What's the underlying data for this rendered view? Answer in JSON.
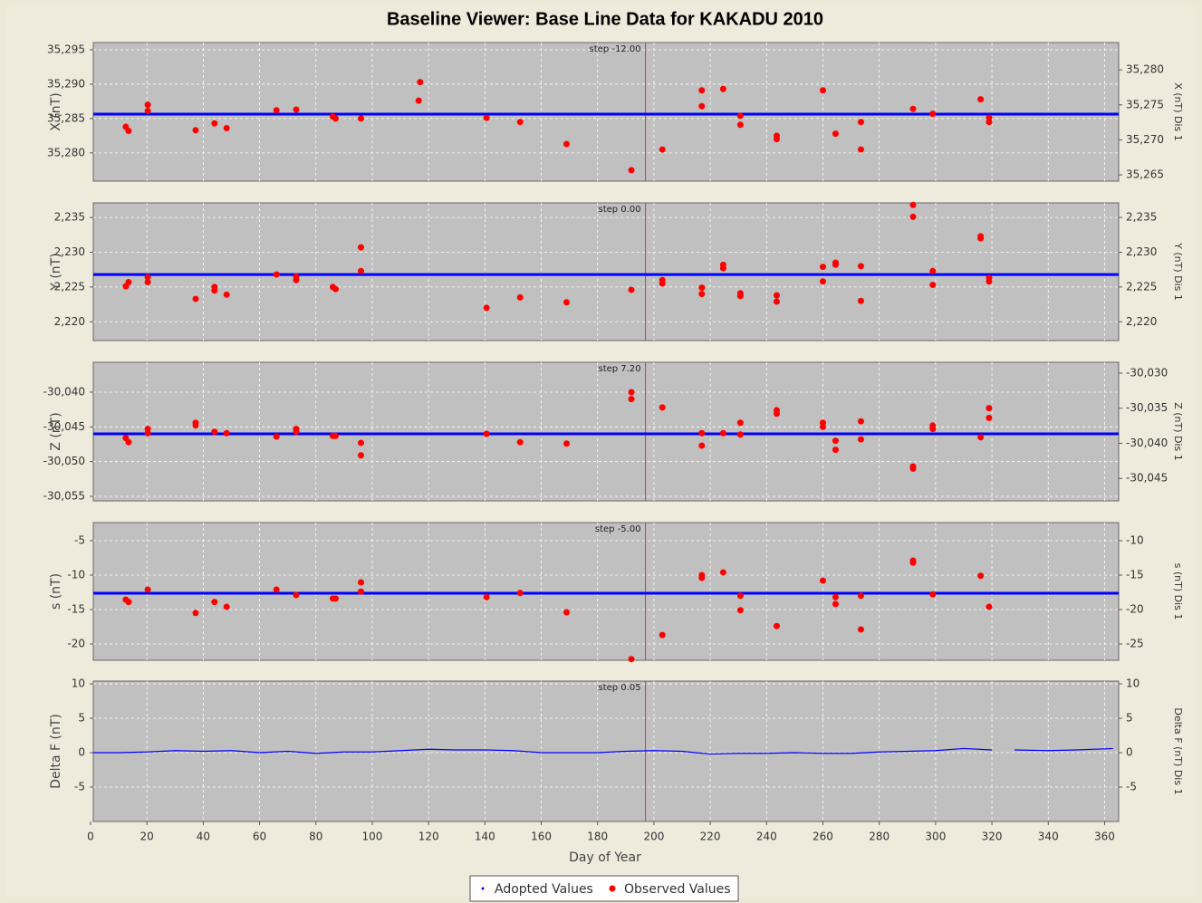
{
  "title": "Baseline Viewer: Base Line Data for KAKADU 2010",
  "xlabel": "Day of Year",
  "xlim": [
    0,
    365
  ],
  "xticks": [
    0,
    20,
    40,
    60,
    80,
    100,
    120,
    140,
    160,
    180,
    200,
    220,
    240,
    260,
    280,
    300,
    320,
    340,
    360
  ],
  "step_day": 197,
  "grid": true,
  "legend": [
    {
      "name": "Adopted Values",
      "color": "#0000ff"
    },
    {
      "name": "Observed Values",
      "color": "#ff0000"
    }
  ],
  "chart_data": [
    {
      "type": "scatter",
      "ylabel": "X (nT)",
      "y2label": "X (nT)  Dis 1",
      "step": "step -12.00",
      "ylim": [
        35275.9,
        35296.05
      ],
      "yticks": [
        {
          "value": 35280,
          "label": "35,280"
        },
        {
          "value": 35285,
          "label": "35,285"
        },
        {
          "value": 35290,
          "label": "35,290"
        },
        {
          "value": 35295,
          "label": "35,295"
        }
      ],
      "y2lim": [
        35264.1,
        35283.9
      ],
      "y2ticks": [
        {
          "value": 35265,
          "label": "35,265"
        },
        {
          "value": 35270,
          "label": "35,270"
        },
        {
          "value": 35275,
          "label": "35,275"
        },
        {
          "value": 35280,
          "label": "35,280"
        }
      ],
      "adopted": 35285.65,
      "observed": {
        "x": [
          12.5,
          13.5,
          20.3,
          20.3,
          37.3,
          44,
          48.3,
          66,
          73,
          86,
          87,
          96,
          117,
          116.5,
          140.6,
          152.5,
          169,
          192,
          203,
          217,
          217,
          224.6,
          230.7,
          230.7,
          243.6,
          243.6,
          260,
          264.5,
          273.5,
          273.5,
          292,
          299,
          316,
          319,
          319
        ],
        "values": [
          35283.8,
          35283.2,
          35287,
          35286.1,
          35283.3,
          35284.3,
          35283.6,
          35286.2,
          35286.3,
          35285.3,
          35285,
          35285,
          35290.3,
          35287.6,
          35285.1,
          35284.5,
          35281.3,
          35277.5,
          35280.5,
          35289.1,
          35286.8,
          35289.3,
          35285.4,
          35284.1,
          35282.5,
          35282,
          35289.1,
          35282.8,
          35284.5,
          35280.5,
          35286.4,
          35285.7,
          35287.8,
          35285.1,
          35284.5
        ]
      }
    },
    {
      "type": "scatter",
      "ylabel": "Y (nT)",
      "y2label": "Y (nT)  Dis 1",
      "step": "step 0.00",
      "ylim": [
        2217.3,
        2237.1
      ],
      "yticks": [
        {
          "value": 2220,
          "label": "2,220"
        },
        {
          "value": 2225,
          "label": "2,225"
        },
        {
          "value": 2230,
          "label": "2,230"
        },
        {
          "value": 2235,
          "label": "2,235"
        }
      ],
      "y2lim": [
        2217.3,
        2237.1
      ],
      "y2ticks": [
        {
          "value": 2220,
          "label": "2,220"
        },
        {
          "value": 2225,
          "label": "2,225"
        },
        {
          "value": 2230,
          "label": "2,230"
        },
        {
          "value": 2235,
          "label": "2,235"
        }
      ],
      "adopted": 2226.8,
      "observed": {
        "x": [
          12.5,
          13.5,
          20.3,
          20.3,
          37.3,
          44,
          44,
          48.3,
          66,
          73,
          73,
          86,
          87,
          96,
          96,
          140.6,
          152.5,
          169,
          192,
          203,
          203,
          217,
          217,
          224.6,
          224.6,
          230.7,
          230.7,
          243.6,
          243.6,
          260,
          260,
          264.5,
          264.5,
          273.5,
          273.5,
          292,
          292,
          299,
          299,
          316,
          316,
          319,
          319
        ],
        "values": [
          2225.1,
          2225.7,
          2226.4,
          2225.7,
          2223.3,
          2225,
          2224.5,
          2223.9,
          2226.8,
          2226,
          2226.5,
          2225,
          2224.7,
          2230.7,
          2227.3,
          2222,
          2223.5,
          2222.8,
          2224.6,
          2225.5,
          2226,
          2224.9,
          2224,
          2228.2,
          2227.7,
          2224.1,
          2223.7,
          2223.8,
          2222.9,
          2227.9,
          2225.8,
          2228.5,
          2228.2,
          2228,
          2223,
          2236.8,
          2235.1,
          2227.3,
          2225.3,
          2232.3,
          2232,
          2226.3,
          2225.8
        ]
      }
    },
    {
      "type": "scatter",
      "ylabel": "Z (nT)",
      "y2label": "Z (nT)  Dis 1",
      "step": "step 7.20",
      "ylim": [
        -30055.65,
        -30035.7
      ],
      "yticks": [
        {
          "value": -30055,
          "label": "-30,055"
        },
        {
          "value": -30050,
          "label": "-30,050"
        },
        {
          "value": -30045,
          "label": "-30,045"
        },
        {
          "value": -30040,
          "label": "-30,040"
        }
      ],
      "y2lim": [
        -30048.2,
        -30028.45
      ],
      "y2ticks": [
        {
          "value": -30045,
          "label": "-30,045"
        },
        {
          "value": -30040,
          "label": "-30,040"
        },
        {
          "value": -30035,
          "label": "-30,035"
        },
        {
          "value": -30030,
          "label": "-30,030"
        }
      ],
      "adopted": -30046.0,
      "observed": {
        "x": [
          12.5,
          13.5,
          20.3,
          20.3,
          37.3,
          37.3,
          44,
          48.3,
          66,
          73,
          73,
          86,
          87,
          96,
          96,
          140.6,
          152.5,
          169,
          192,
          192,
          203,
          217,
          217,
          224.6,
          230.7,
          230.7,
          243.6,
          243.6,
          260,
          260,
          264.5,
          264.5,
          273.5,
          273.5,
          292,
          292,
          299,
          299,
          316,
          319,
          319
        ],
        "values": [
          -30046.6,
          -30047.2,
          -30045.3,
          -30045.9,
          -30044.4,
          -30044.8,
          -30045.7,
          -30045.9,
          -30046.4,
          -30045.3,
          -30045.7,
          -30046.3,
          -30046.3,
          -30047.3,
          -30049.1,
          -30046,
          -30047.2,
          -30047.4,
          -30040,
          -30041,
          -30042.2,
          -30045.9,
          -30047.7,
          -30045.9,
          -30044.4,
          -30046.1,
          -30042.6,
          -30043.1,
          -30044.4,
          -30045,
          -30047,
          -30048.3,
          -30044.2,
          -30046.8,
          -30050.7,
          -30051,
          -30044.8,
          -30045.3,
          -30046.5,
          -30042.3,
          -30043.7
        ]
      }
    },
    {
      "type": "scatter",
      "ylabel": "s (nT)",
      "y2label": "s (nT)  Dis 1",
      "step": "step -5.00",
      "ylim": [
        -22.37,
        -2.37
      ],
      "yticks": [
        -20,
        -15,
        -10,
        -5
      ],
      "y2lim": [
        -27.37,
        -7.37
      ],
      "y2ticks": [
        -25,
        -20,
        -15,
        -10
      ],
      "adopted": -12.63,
      "observed": {
        "x": [
          12.5,
          13.5,
          20.3,
          37.3,
          44,
          48.3,
          66,
          73,
          86,
          87,
          96,
          96,
          140.6,
          152.5,
          169,
          192,
          203,
          217,
          217,
          224.6,
          230.7,
          230.7,
          243.6,
          260,
          264.5,
          264.5,
          273.5,
          273.5,
          292,
          292,
          299,
          316,
          319
        ],
        "values": [
          -13.55,
          -13.9,
          -12.1,
          -15.5,
          -13.9,
          -14.6,
          -12.1,
          -12.9,
          -13.4,
          -13.4,
          -11.05,
          -12.4,
          -13.2,
          -12.6,
          -15.4,
          -22.2,
          -18.7,
          -10,
          -10.4,
          -9.6,
          -13,
          -15.1,
          -17.4,
          -10.8,
          -13.2,
          -14.2,
          -13,
          -17.9,
          -7.9,
          -8.2,
          -12.8,
          -10.1,
          -14.6
        ]
      }
    },
    {
      "type": "line",
      "ylabel": "Delta F (nT)",
      "y2label": "Delta F (nT)  Dis 1",
      "step": "step 0.05",
      "ylim": [
        -10,
        10.4
      ],
      "yticks": [
        -5,
        0,
        5,
        10
      ],
      "y2lim": [
        -10,
        10.4
      ],
      "y2ticks": [
        -5,
        0,
        5,
        10
      ],
      "line": {
        "x": [
          1,
          10,
          20,
          30,
          40,
          50,
          60,
          70,
          80,
          90,
          100,
          110,
          120,
          130,
          140,
          150,
          160,
          170,
          180,
          190,
          200,
          210,
          220,
          230,
          240,
          250,
          260,
          270,
          280,
          290,
          300,
          310,
          320,
          324,
          328,
          340,
          350,
          363
        ],
        "values": [
          0,
          0,
          0.1,
          0.3,
          0.2,
          0.3,
          0,
          0.2,
          -0.1,
          0.1,
          0.1,
          0.3,
          0.5,
          0.4,
          0.4,
          0.3,
          0,
          0,
          0,
          0.2,
          0.3,
          0.2,
          -0.2,
          -0.1,
          -0.1,
          0,
          -0.1,
          -0.1,
          0.1,
          0.2,
          0.3,
          0.6,
          0.4,
          null,
          0.4,
          0.3,
          0.4,
          0.6
        ]
      }
    }
  ]
}
